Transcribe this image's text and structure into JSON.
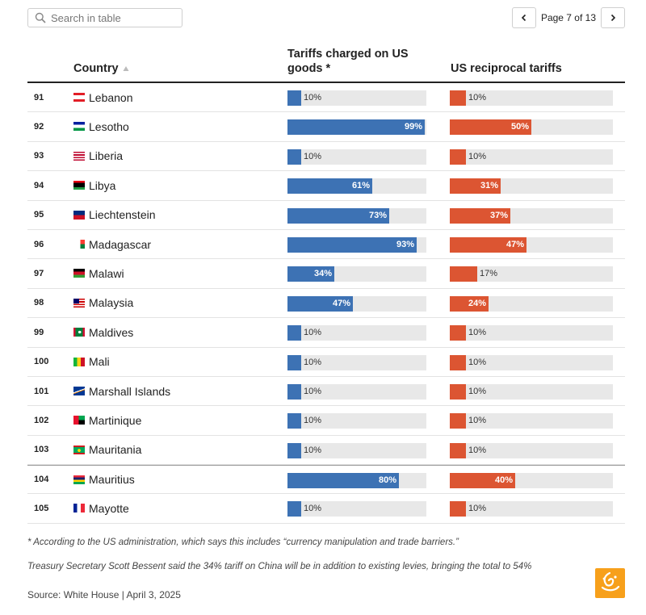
{
  "search": {
    "placeholder": "Search in table",
    "icon": "search-icon"
  },
  "pagination": {
    "label": "Page 7 of 13",
    "prev_icon": "chevron-left-icon",
    "next_icon": "chevron-right-icon"
  },
  "colors": {
    "blue": "#3d72b4",
    "red": "#dc5532",
    "track": "#e8e8e8",
    "logo": "#f7a01b"
  },
  "chart_data": {
    "type": "table",
    "columns": [
      "",
      "Country",
      "Tariffs charged on US goods *",
      "US reciprocal tariffs"
    ],
    "sorted_by": "Country",
    "rows": [
      {
        "rank": "91",
        "country": "Lebanon",
        "tariff": 10,
        "reciprocal": 10,
        "tariff_label": "10%",
        "reciprocal_label": "10%",
        "flag": "lebanon"
      },
      {
        "rank": "92",
        "country": "Lesotho",
        "tariff": 99,
        "reciprocal": 50,
        "tariff_label": "99%",
        "reciprocal_label": "50%",
        "flag": "lesotho"
      },
      {
        "rank": "93",
        "country": "Liberia",
        "tariff": 10,
        "reciprocal": 10,
        "tariff_label": "10%",
        "reciprocal_label": "10%",
        "flag": "liberia"
      },
      {
        "rank": "94",
        "country": "Libya",
        "tariff": 61,
        "reciprocal": 31,
        "tariff_label": "61%",
        "reciprocal_label": "31%",
        "flag": "libya"
      },
      {
        "rank": "95",
        "country": "Liechtenstein",
        "tariff": 73,
        "reciprocal": 37,
        "tariff_label": "73%",
        "reciprocal_label": "37%",
        "flag": "liechtenstein"
      },
      {
        "rank": "96",
        "country": "Madagascar",
        "tariff": 93,
        "reciprocal": 47,
        "tariff_label": "93%",
        "reciprocal_label": "47%",
        "flag": "madagascar"
      },
      {
        "rank": "97",
        "country": "Malawi",
        "tariff": 34,
        "reciprocal": 17,
        "tariff_label": "34%",
        "reciprocal_label": "17%",
        "flag": "malawi"
      },
      {
        "rank": "98",
        "country": "Malaysia",
        "tariff": 47,
        "reciprocal": 24,
        "tariff_label": "47%",
        "reciprocal_label": "24%",
        "flag": "malaysia"
      },
      {
        "rank": "99",
        "country": "Maldives",
        "tariff": 10,
        "reciprocal": 10,
        "tariff_label": "10%",
        "reciprocal_label": "10%",
        "flag": "maldives"
      },
      {
        "rank": "100",
        "country": "Mali",
        "tariff": 10,
        "reciprocal": 10,
        "tariff_label": "10%",
        "reciprocal_label": "10%",
        "flag": "mali"
      },
      {
        "rank": "101",
        "country": "Marshall Islands",
        "tariff": 10,
        "reciprocal": 10,
        "tariff_label": "10%",
        "reciprocal_label": "10%",
        "flag": "marshall-islands"
      },
      {
        "rank": "102",
        "country": "Martinique",
        "tariff": 10,
        "reciprocal": 10,
        "tariff_label": "10%",
        "reciprocal_label": "10%",
        "flag": "martinique"
      },
      {
        "rank": "103",
        "country": "Mauritania",
        "tariff": 10,
        "reciprocal": 10,
        "tariff_label": "10%",
        "reciprocal_label": "10%",
        "flag": "mauritania"
      },
      {
        "rank": "104",
        "country": "Mauritius",
        "tariff": 80,
        "reciprocal": 40,
        "tariff_label": "80%",
        "reciprocal_label": "40%",
        "flag": "mauritius"
      },
      {
        "rank": "105",
        "country": "Mayotte",
        "tariff": 10,
        "reciprocal": 10,
        "tariff_label": "10%",
        "reciprocal_label": "10%",
        "flag": "mayotte"
      }
    ],
    "xlim": [
      0,
      100
    ]
  },
  "footnotes": {
    "note1": "* According to the US administration, which says this includes “currency manipulation and trade barriers.”",
    "note2": "Treasury Secretary Scott Bessent said the 34% tariff on China will be in addition to existing levies, bringing the total to 54%",
    "source": "Source: White House | April 3, 2025"
  }
}
